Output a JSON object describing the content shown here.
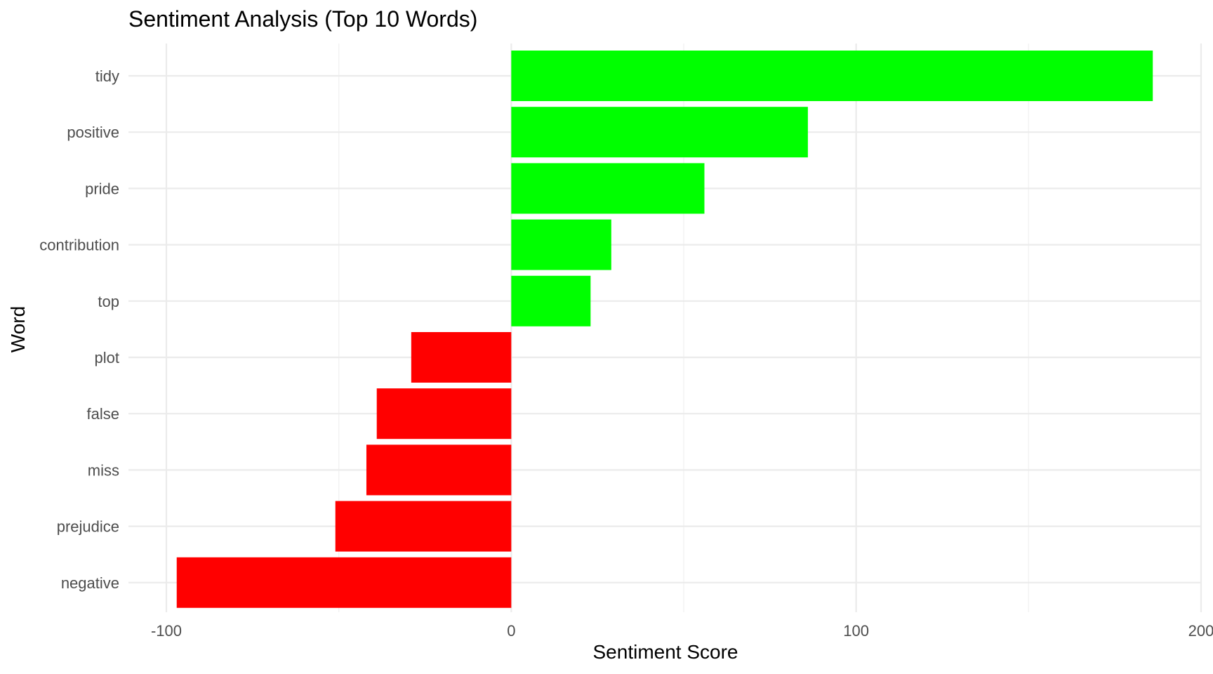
{
  "chart_data": {
    "type": "bar",
    "orientation": "horizontal",
    "title": "Sentiment Analysis (Top 10 Words)",
    "xlabel": "Sentiment Score",
    "ylabel": "Word",
    "xlim": [
      -100,
      200
    ],
    "x_ticks": [
      -100,
      0,
      100,
      200
    ],
    "x_tick_labels": [
      "-100",
      "0",
      "100",
      "200"
    ],
    "grid": true,
    "legend": "none",
    "categories": [
      "tidy",
      "positive",
      "pride",
      "contribution",
      "top",
      "plot",
      "false",
      "miss",
      "prejudice",
      "negative"
    ],
    "values": [
      186,
      86,
      56,
      29,
      23,
      -29,
      -39,
      -42,
      -51,
      -97
    ],
    "colors": {
      "positive": "#00ff00",
      "negative": "#ff0000"
    }
  }
}
